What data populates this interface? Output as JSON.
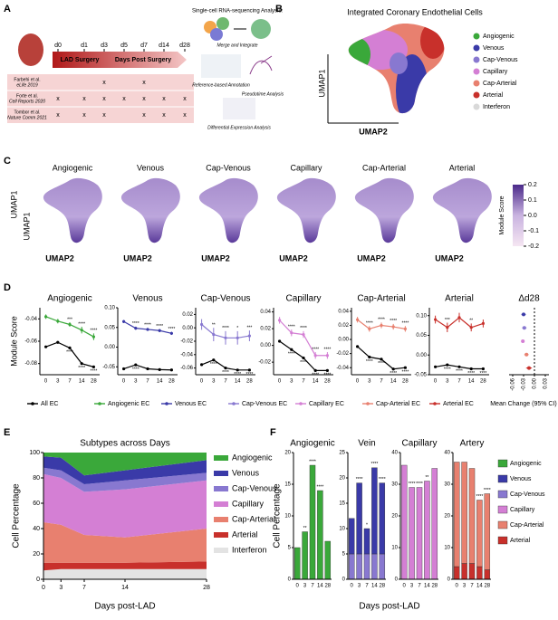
{
  "panel_labels": [
    "A",
    "B",
    "C",
    "D",
    "E",
    "F"
  ],
  "panel_a": {
    "timepoints": [
      "d0",
      "d1",
      "d3",
      "d5",
      "d7",
      "d14",
      "d28"
    ],
    "surgery": "LAD Surgery",
    "post": "Days Post Surgery",
    "studies": [
      {
        "name": "Farbehi et al.",
        "journal": "eLife 2019",
        "marks": [
          null,
          null,
          "x",
          null,
          "x",
          null,
          null
        ]
      },
      {
        "name": "Forte et al.",
        "journal": "Cell Reports 2020",
        "marks": [
          "x",
          "x",
          "x",
          "x",
          "x",
          "x",
          "x"
        ]
      },
      {
        "name": "Tombor et al.",
        "journal": "Nature Comm 2021",
        "marks": [
          "x",
          "x",
          "x",
          null,
          "x",
          "x",
          "x"
        ]
      }
    ],
    "analysis_title": "Single-cell RNA-sequencing Analysis:",
    "steps": [
      "Merge and Integrate",
      "Reference-based Annotation",
      "Pseudotime Analysis",
      "Differential Expression Analysis"
    ]
  },
  "panel_b": {
    "title": "Integrated Coronary Endothelial Cells",
    "axis_x": "UMAP2",
    "axis_y": "UMAP1",
    "legend": [
      {
        "name": "Angiogenic",
        "color": "#3aa83a"
      },
      {
        "name": "Venous",
        "color": "#3a3aa8"
      },
      {
        "name": "Cap-Venous",
        "color": "#8878d0"
      },
      {
        "name": "Capillary",
        "color": "#d47fd4"
      },
      {
        "name": "Cap-Arterial",
        "color": "#e8806f"
      },
      {
        "name": "Arterial",
        "color": "#c8302b"
      },
      {
        "name": "Interferon",
        "color": "#d9d9d9"
      }
    ]
  },
  "panel_c": {
    "titles": [
      "Angiogenic",
      "Venous",
      "Cap-Venous",
      "Capillary",
      "Cap-Arterial",
      "Arterial"
    ],
    "axis_x": "UMAP2",
    "axis_y": "UMAP1",
    "colorbar": {
      "title": "Module Score",
      "lim": [
        -0.2,
        0.2
      ],
      "ticks": [
        0.2,
        0.1,
        {
          "value": 0,
          "label": "0.0"
        },
        -0.1,
        -0.2
      ]
    }
  },
  "chart_data": [
    {
      "type": "line",
      "title": "Angiogenic",
      "ylabel": "Module Score",
      "categories": [
        "0",
        "3",
        "7",
        "14",
        "28"
      ],
      "ylim": [
        -0.09,
        -0.03
      ],
      "yticks": [
        -0.04,
        -0.06,
        -0.08
      ],
      "series": [
        {
          "name": "All EC",
          "color": "#000000",
          "values": [
            -0.065,
            -0.061,
            -0.066,
            -0.08,
            -0.083
          ],
          "annotations": [
            null,
            null,
            "****",
            "****",
            "****"
          ]
        },
        {
          "name": "Angiogenic EC",
          "color": "#3aa83a",
          "values": [
            -0.038,
            -0.042,
            -0.045,
            -0.05,
            -0.056
          ],
          "errors": [
            0.002,
            0.002,
            0.002,
            0.003,
            0.003
          ],
          "annotations": [
            null,
            null,
            "***",
            "****",
            "****"
          ]
        }
      ]
    },
    {
      "type": "line",
      "title": "Venous",
      "categories": [
        "0",
        "3",
        "7",
        "14",
        "28"
      ],
      "ylim": [
        -0.07,
        0.1
      ],
      "yticks": [
        {
          "value": 0.1,
          "label": "0.10"
        },
        0.05,
        {
          "value": 0,
          "label": "0.00"
        },
        -0.05
      ],
      "series": [
        {
          "name": "All EC",
          "color": "#000000",
          "values": [
            -0.055,
            -0.045,
            -0.055,
            -0.057,
            -0.058
          ],
          "annotations": [
            null,
            "****",
            null,
            null,
            null
          ]
        },
        {
          "name": "Venous EC",
          "color": "#3a3aa8",
          "values": [
            0.065,
            0.048,
            0.045,
            0.042,
            0.035
          ],
          "errors": [
            0.004,
            0.004,
            0.004,
            0.004,
            0.004
          ],
          "annotations": [
            null,
            "****",
            "****",
            "****",
            "****"
          ]
        }
      ]
    },
    {
      "type": "line",
      "title": "Cap-Venous",
      "categories": [
        "0",
        "3",
        "7",
        "14",
        "28"
      ],
      "ylim": [
        -0.07,
        0.03
      ],
      "yticks": [
        0.02,
        {
          "value": 0,
          "label": "0.00"
        },
        -0.02,
        -0.04,
        -0.06
      ],
      "series": [
        {
          "name": "All EC",
          "color": "#000000",
          "values": [
            -0.055,
            -0.048,
            -0.06,
            -0.063,
            -0.063
          ],
          "annotations": [
            null,
            "****",
            "****",
            "****",
            "****"
          ]
        },
        {
          "name": "Cap-Venous EC",
          "color": "#8878d0",
          "values": [
            0.005,
            -0.01,
            -0.015,
            -0.015,
            -0.012
          ],
          "errors": [
            0.008,
            0.01,
            0.01,
            0.01,
            0.008
          ],
          "annotations": [
            null,
            "**",
            "****",
            "*",
            "***"
          ]
        }
      ]
    },
    {
      "type": "line",
      "title": "Capillary",
      "categories": [
        "0",
        "3",
        "7",
        "14",
        "28"
      ],
      "ylim": [
        -0.035,
        0.045
      ],
      "yticks": [
        0.04,
        0.02,
        {
          "value": 0,
          "label": "0.00"
        },
        -0.02
      ],
      "series": [
        {
          "name": "All EC",
          "color": "#000000",
          "values": [
            0.005,
            -0.005,
            -0.015,
            -0.03,
            -0.03
          ],
          "annotations": [
            null,
            "****",
            "****",
            "****",
            "****"
          ]
        },
        {
          "name": "Capillary EC",
          "color": "#d47fd4",
          "values": [
            0.03,
            0.015,
            0.013,
            -0.012,
            -0.012
          ],
          "errors": [
            0.004,
            0.004,
            0.004,
            0.004,
            0.004
          ],
          "annotations": [
            null,
            "****",
            "****",
            "****",
            "****"
          ]
        }
      ]
    },
    {
      "type": "line",
      "title": "Cap-Arterial",
      "categories": [
        "0",
        "3",
        "7",
        "14",
        "28"
      ],
      "ylim": [
        -0.05,
        0.045
      ],
      "yticks": [
        0.04,
        0.02,
        {
          "value": 0,
          "label": "0.00"
        },
        -0.02,
        -0.04
      ],
      "series": [
        {
          "name": "All EC",
          "color": "#000000",
          "values": [
            -0.01,
            -0.025,
            -0.028,
            -0.042,
            -0.04
          ],
          "annotations": [
            null,
            "****",
            "****",
            "****",
            "****"
          ]
        },
        {
          "name": "Cap-Arterial EC",
          "color": "#e8806f",
          "values": [
            0.028,
            0.015,
            0.02,
            0.018,
            0.015
          ],
          "errors": [
            0.004,
            0.004,
            0.004,
            0.004,
            0.004
          ],
          "annotations": [
            null,
            "****",
            "****",
            "****",
            "****"
          ]
        }
      ]
    },
    {
      "type": "line",
      "title": "Arterial",
      "categories": [
        "0",
        "3",
        "7",
        "14",
        "28"
      ],
      "ylim": [
        -0.05,
        0.12
      ],
      "yticks": [
        {
          "value": 0.1,
          "label": "0.10"
        },
        0.05,
        {
          "value": 0,
          "label": "0.00"
        },
        -0.05
      ],
      "series": [
        {
          "name": "All EC",
          "color": "#000000",
          "values": [
            -0.03,
            -0.025,
            -0.03,
            -0.035,
            -0.035
          ],
          "annotations": [
            null,
            "****",
            "****",
            "****",
            "****"
          ]
        },
        {
          "name": "Arterial EC",
          "color": "#c8302b",
          "values": [
            0.09,
            0.07,
            0.095,
            0.07,
            0.08
          ],
          "errors": [
            0.01,
            0.012,
            0.012,
            0.01,
            0.01
          ],
          "annotations": [
            null,
            "***",
            null,
            "**",
            null
          ]
        }
      ]
    },
    {
      "type": "forest",
      "title": "Δd28",
      "xlabel": "Mean Change (95% CI)",
      "values": [
        -0.03,
        -0.028,
        -0.032,
        -0.022,
        -0.015
      ],
      "errors": [
        0.006,
        0.006,
        0.005,
        0.006,
        0.008
      ],
      "colors": [
        "#3a3aa8",
        "#8878d0",
        "#d47fd4",
        "#e8806f",
        "#c8302b"
      ],
      "xlim": [
        -0.07,
        0.04
      ],
      "xticks": [
        -0.06,
        -0.03,
        {
          "value": 0,
          "label": "0.00"
        },
        0.03
      ]
    },
    {
      "type": "area",
      "title": "Subtypes across Days",
      "xlabel": "Days post-LAD",
      "ylabel": "Cell Percentage",
      "x": [
        0,
        3,
        7,
        14,
        28
      ],
      "xlim": [
        0,
        28
      ],
      "xticks": [
        0,
        3,
        7,
        14,
        28
      ],
      "ylim": [
        0,
        100
      ],
      "yticks": [
        0,
        20,
        40,
        60,
        80,
        100
      ],
      "series": [
        {
          "name": "Interferon",
          "color": "#e3e3e3",
          "values": [
            7,
            8,
            8,
            8,
            8
          ]
        },
        {
          "name": "Arterial",
          "color": "#c8302b",
          "values": [
            6,
            5,
            5,
            5,
            6
          ]
        },
        {
          "name": "Cap-Arterial",
          "color": "#e8806f",
          "values": [
            32,
            30,
            22,
            20,
            26
          ]
        },
        {
          "name": "Capillary",
          "color": "#d47fd4",
          "values": [
            38,
            37,
            34,
            38,
            38
          ]
        },
        {
          "name": "Cap-Venous",
          "color": "#8878d0",
          "values": [
            5,
            6,
            6,
            7,
            6
          ]
        },
        {
          "name": "Venous",
          "color": "#3a3aa8",
          "values": [
            9,
            10,
            7,
            8,
            10
          ]
        },
        {
          "name": "Angiogenic",
          "color": "#3aa83a",
          "values": [
            3,
            4,
            18,
            14,
            6
          ]
        }
      ]
    },
    {
      "type": "bar",
      "title": "Angiogenic",
      "ylabel": "Cell Percentage",
      "xlabel": "Days post-LAD",
      "categories": [
        "0",
        "3",
        "7",
        "14",
        "28"
      ],
      "ylim": [
        0,
        20
      ],
      "yticks": [
        0,
        5,
        10,
        15,
        20
      ],
      "series": [
        {
          "name": "Angiogenic",
          "color": "#3aa83a",
          "values": [
            5,
            7.5,
            18,
            14,
            6
          ]
        }
      ],
      "annotations": [
        null,
        "**",
        "****",
        "****",
        null
      ]
    },
    {
      "type": "bar",
      "title": "Vein",
      "categories": [
        "0",
        "3",
        "7",
        "14",
        "28"
      ],
      "ylim": [
        0,
        25
      ],
      "yticks": [
        0,
        5,
        10,
        15,
        20,
        25
      ],
      "series": [
        {
          "name": "Cap-Venous",
          "color": "#8878d0",
          "values": [
            5,
            5,
            5,
            5,
            5
          ]
        },
        {
          "name": "Venous",
          "color": "#3a3aa8",
          "values": [
            7,
            14,
            5,
            17,
            14
          ]
        }
      ],
      "annotations": [
        null,
        "****",
        "*",
        "****",
        "****"
      ]
    },
    {
      "type": "bar",
      "title": "Capillary",
      "categories": [
        "0",
        "3",
        "7",
        "14",
        "28"
      ],
      "ylim": [
        0,
        40
      ],
      "yticks": [
        0,
        10,
        20,
        30,
        40
      ],
      "series": [
        {
          "name": "Capillary",
          "color": "#d47fd4",
          "values": [
            36,
            29,
            29,
            31,
            35
          ]
        }
      ],
      "annotations": [
        null,
        "****",
        "****",
        "**",
        null
      ]
    },
    {
      "type": "bar",
      "title": "Artery",
      "categories": [
        "0",
        "3",
        "7",
        "14",
        "28"
      ],
      "ylim": [
        0,
        40
      ],
      "yticks": [
        0,
        10,
        20,
        30,
        40
      ],
      "series": [
        {
          "name": "Arterial",
          "color": "#c8302b",
          "values": [
            4,
            5,
            5,
            4,
            3
          ]
        },
        {
          "name": "Cap-Arterial",
          "color": "#e8806f",
          "values": [
            33,
            32,
            30,
            21,
            24
          ]
        }
      ],
      "annotations": [
        null,
        null,
        null,
        "****",
        "****"
      ]
    }
  ]
}
